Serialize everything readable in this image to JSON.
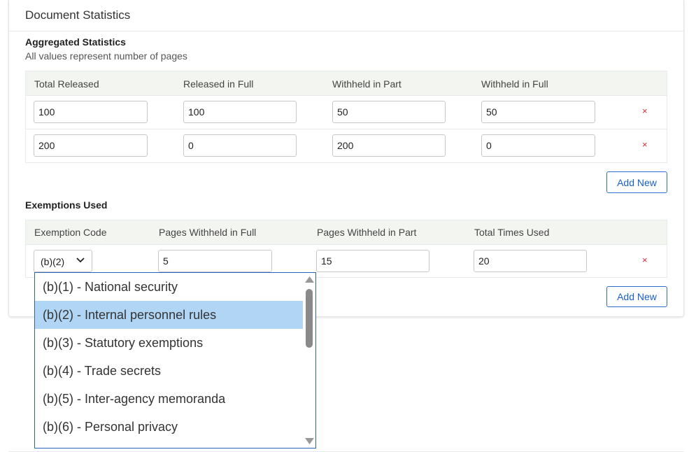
{
  "card": {
    "title": "Document Statistics"
  },
  "aggregated": {
    "heading": "Aggregated Statistics",
    "subtitle": "All values represent number of pages",
    "columns": [
      "Total Released",
      "Released in Full",
      "Withheld in Part",
      "Withheld in Full"
    ],
    "rows": [
      [
        "100",
        "100",
        "50",
        "50"
      ],
      [
        "200",
        "0",
        "200",
        "0"
      ]
    ],
    "remove_glyph": "×",
    "add_label": "Add New"
  },
  "exemptions": {
    "heading": "Exemptions Used",
    "columns": [
      "Exemption Code",
      "Pages Withheld in Full",
      "Pages Withheld in Part",
      "Total Times Used"
    ],
    "rows": [
      {
        "code": "(b)(2)",
        "full": "5",
        "part": "15",
        "total": "20"
      }
    ],
    "remove_glyph": "×",
    "add_label": "Add New",
    "options": [
      "(b)(1) - National security",
      "(b)(2) - Internal personnel rules",
      "(b)(3) - Statutory exemptions",
      "(b)(4) - Trade secrets",
      "(b)(5) - Inter-agency memoranda",
      "(b)(6) - Personal privacy"
    ],
    "selected_option": "(b)(2) - Internal personnel rules"
  },
  "colors": {
    "accent": "#2f6fd0",
    "remove": "#e0283a",
    "highlight": "#b1d6f5",
    "header_bg": "#f3f5f0"
  }
}
